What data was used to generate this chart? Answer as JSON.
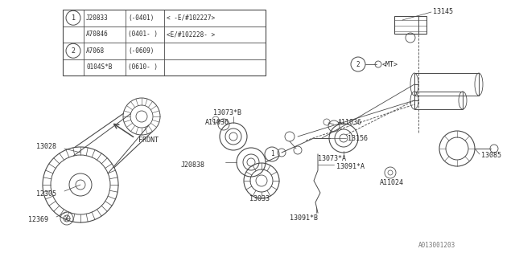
{
  "bg_color": "#ffffff",
  "line_color": "#4a4a4a",
  "text_color": "#2a2a2a",
  "diagram_id": "A013001203",
  "table_rows": [
    {
      "sym": "1",
      "part": "J20833",
      "date": "(-0401)",
      "spec": "< -E/#102227>"
    },
    {
      "sym": "1",
      "part": "A70846",
      "date": "(0401- )",
      "spec": "<E/#102228- >"
    },
    {
      "sym": "2",
      "part": "A7068",
      "date": "(-0609)",
      "spec": ""
    },
    {
      "sym": "2",
      "part": "0104S*B",
      "date": "(0610- )",
      "spec": ""
    }
  ]
}
